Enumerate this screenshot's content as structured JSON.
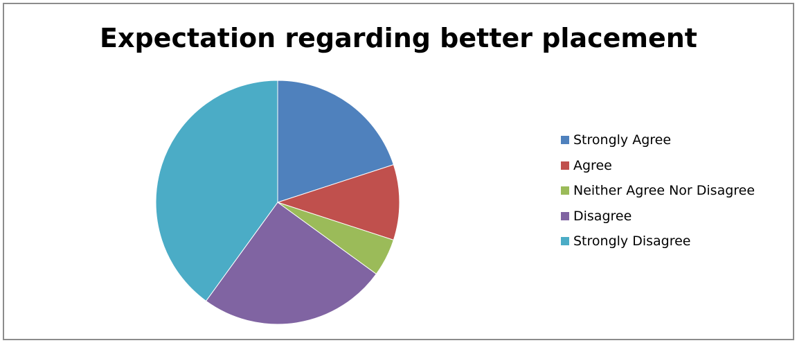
{
  "chart_data": {
    "type": "pie",
    "title": "Expectation regarding better placement",
    "categories": [
      "Strongly Agree",
      "Agree",
      "Neither Agree Nor Disagree",
      "Disagree",
      "Strongly Disagree"
    ],
    "values": [
      20,
      10,
      5,
      25,
      40
    ],
    "colors": [
      "#4f81bd",
      "#c0504d",
      "#9bbb59",
      "#8064a2",
      "#4bacc6"
    ],
    "start_angle": "12 o'clock",
    "direction": "clockwise",
    "legend_position": "right"
  }
}
